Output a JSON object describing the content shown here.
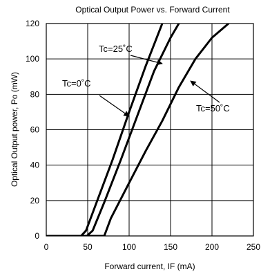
{
  "chart_data": {
    "type": "line",
    "title": "Optical Output Power vs. Forward Current",
    "xlabel": "Forward current, IF (mA)",
    "ylabel": "Optical Output power, Po (mW)",
    "xlim": [
      0,
      250
    ],
    "ylim": [
      0,
      120
    ],
    "xticks": [
      "0",
      "50",
      "100",
      "150",
      "200",
      "250"
    ],
    "yticks": [
      "0",
      "20",
      "40",
      "60",
      "80",
      "100",
      "120"
    ],
    "grid": true,
    "series": [
      {
        "name": "Tc=0˚C",
        "x": [
          0,
          42,
          48,
          60,
          80,
          100,
          120,
          140
        ],
        "y": [
          0,
          0,
          3,
          18,
          43,
          70,
          96,
          120
        ]
      },
      {
        "name": "Tc=25˚C",
        "x": [
          0,
          49,
          56,
          70,
          90,
          110,
          130,
          150,
          160
        ],
        "y": [
          0,
          0,
          3,
          19,
          43,
          68,
          93,
          112,
          120
        ]
      },
      {
        "name": "Tc=50˚C",
        "x": [
          0,
          70,
          78,
          100,
          120,
          140,
          160,
          180,
          200,
          220
        ],
        "y": [
          0,
          0,
          10,
          30,
          48,
          65,
          84,
          100,
          112,
          120
        ]
      }
    ],
    "annotations": [
      {
        "text": "Tc=25˚C",
        "target_series": 1
      },
      {
        "text": "Tc=0˚C",
        "target_series": 0
      },
      {
        "text": "Tc=50˚C",
        "target_series": 2
      }
    ]
  }
}
